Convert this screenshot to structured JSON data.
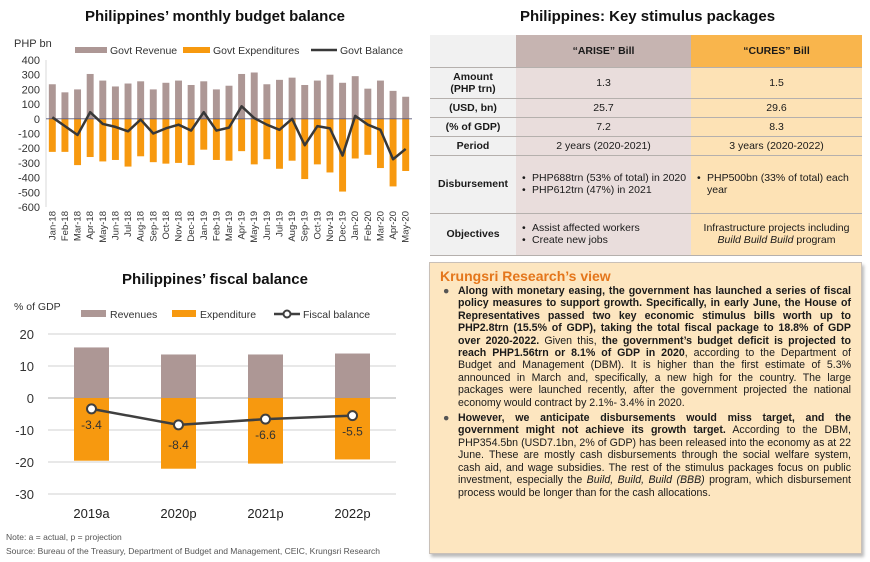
{
  "chart_data": [
    {
      "type": "bar",
      "title": "Philippines’ monthly budget balance",
      "ylabel": "PHP bn",
      "xlabel": "",
      "ylim": [
        -600,
        400
      ],
      "yticks": [
        400,
        300,
        200,
        100,
        0,
        -100,
        -200,
        -300,
        -400,
        -500,
        -600
      ],
      "legend": "top",
      "categories": [
        "Jan-18",
        "Feb-18",
        "Mar-18",
        "Apr-18",
        "May-18",
        "Jun-18",
        "Jul-18",
        "Aug-18",
        "Sep-18",
        "Oct-18",
        "Nov-18",
        "Dec-18",
        "Jan-19",
        "Feb-19",
        "Mar-19",
        "Apr-19",
        "May-19",
        "Jun-19",
        "Jul-19",
        "Aug-19",
        "Sep-19",
        "Oct-19",
        "Nov-19",
        "Dec-19",
        "Jan-20",
        "Feb-20",
        "Mar-20",
        "Apr-20",
        "May-20"
      ],
      "series": [
        {
          "name": "Govt Revenue",
          "type": "bar",
          "color": "#ad9795",
          "values": [
            235,
            180,
            200,
            305,
            260,
            220,
            240,
            255,
            200,
            245,
            260,
            230,
            255,
            200,
            225,
            305,
            315,
            235,
            265,
            280,
            230,
            260,
            300,
            245,
            290,
            205,
            260,
            190,
            150
          ]
        },
        {
          "name": "Govt Expenditures",
          "type": "bar",
          "color": "#f7990f",
          "values": [
            -225,
            -225,
            -315,
            -260,
            -290,
            -280,
            -325,
            -255,
            -295,
            -305,
            -300,
            -315,
            -210,
            -280,
            -285,
            -220,
            -310,
            -275,
            -340,
            -285,
            -410,
            -310,
            -365,
            -495,
            -270,
            -245,
            -335,
            -460,
            -355
          ]
        },
        {
          "name": "Govt Balance",
          "type": "line",
          "color": "#383838",
          "values": [
            10,
            -50,
            -110,
            45,
            -35,
            -55,
            -85,
            -5,
            -100,
            -65,
            -40,
            -80,
            45,
            -80,
            -60,
            85,
            5,
            -40,
            -75,
            0,
            -180,
            -50,
            -65,
            -250,
            20,
            -40,
            -75,
            -275,
            -205
          ]
        }
      ]
    },
    {
      "type": "bar",
      "title": "Philippines’ fiscal balance",
      "ylabel": "% of GDP",
      "xlabel": "",
      "ylim": [
        -30,
        20
      ],
      "yticks": [
        20,
        10,
        0,
        -10,
        -20,
        -30
      ],
      "grid": true,
      "legend": "top",
      "categories": [
        "2019a",
        "2020p",
        "2021p",
        "2022p"
      ],
      "series": [
        {
          "name": "Revenues",
          "type": "bar",
          "color": "#ad9795",
          "values": [
            15.8,
            13.6,
            13.6,
            13.9
          ]
        },
        {
          "name": "Expenditure",
          "type": "bar",
          "color": "#f7990f",
          "values": [
            -19.6,
            -22.1,
            -20.5,
            -19.2
          ]
        },
        {
          "name": "Fiscal balance",
          "type": "line",
          "color": "#3f3f3f",
          "values": [
            -3.4,
            -8.4,
            -6.6,
            -5.5
          ],
          "labels": [
            "-3.4",
            "-8.4",
            "-6.6",
            "-5.5"
          ]
        }
      ]
    }
  ],
  "notes": {
    "note": "Note: a = actual, p = projection",
    "source": "Source: Bureau of the Treasury, Department of Budget and Management, CEIC, Krungsri Research"
  },
  "table": {
    "title": "Philippines: Key stimulus packages",
    "headers": [
      "",
      "“ARISE” Bill",
      "“CURES” Bill"
    ],
    "rows": [
      {
        "label": "Amount\n(PHP trn)",
        "arise": "1.3",
        "cures": "1.5"
      },
      {
        "label": "(USD, bn)",
        "arise": "25.7",
        "cures": "29.6"
      },
      {
        "label": "(% of GDP)",
        "arise": "7.2",
        "cures": "8.3"
      },
      {
        "label": "Period",
        "arise": "2 years (2020-2021)",
        "cures": "3 years (2020-2022)"
      }
    ],
    "disbursement": {
      "label": "Disbursement",
      "arise": [
        "PHP688trn (53% of total) in 2020",
        "PHP612trn (47%) in 2021"
      ],
      "cures": [
        "PHP500bn (33% of total) each year"
      ]
    },
    "objectives": {
      "label": "Objectives",
      "arise": [
        "Assist affected workers",
        "Create new jobs"
      ],
      "cures_pre": "Infrastructure projects including ",
      "cures_italic": "Build Build Build",
      "cures_post": " program"
    }
  },
  "view": {
    "title": "Krungsri Research’s view",
    "p1_b1": "Along with monetary easing, the government has launched a series of fiscal policy measures to support growth. Specifically, in early June, the House of Representatives passed two key economic stimulus bills worth up to PHP2.8trn (15.5% of GDP),  taking the total fiscal package to 18.8% of GDP over 2020-2022.",
    "p1_t1": " Given this, ",
    "p1_b2": "the government’s budget deficit is projected to reach PHP1.56trn or 8.1% of GDP in 2020",
    "p1_t2": ", according to the Department of Budget and Management (DBM). It is higher than the first estimate of 5.3% announced in March and, specifically, a new high for the country. The large packages were launched recently, after the government projected the national economy would contract by 2.1%- 3.4% in 2020.",
    "p2_b1": "However, we anticipate disbursements would miss target, and the government might not achieve its growth target.",
    "p2_t1": " According to the DBM, PHP354.5bn (USD7.1bn, 2% of GDP) has been released into the economy as at 22 June. These are mostly cash disbursements through the social welfare system, cash aid, and wage subsidies. The rest of the stimulus packages focus on public investment, especially the ",
    "p2_i1": "Build, Build, Build (BBB)",
    "p2_t2": " program, which disbursement process would be longer than for the cash allocations.",
    "bullet": "●"
  }
}
